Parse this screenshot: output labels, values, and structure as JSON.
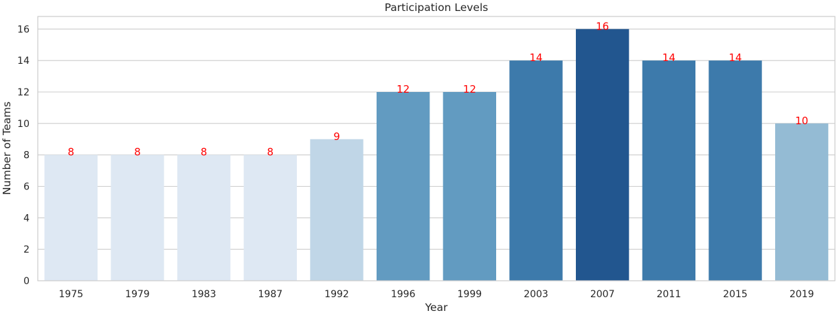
{
  "chart_data": {
    "type": "bar",
    "title": "Participation Levels",
    "xlabel": "Year",
    "ylabel": "Number of Teams",
    "categories": [
      "1975",
      "1979",
      "1983",
      "1987",
      "1992",
      "1996",
      "1999",
      "2003",
      "2007",
      "2011",
      "2015",
      "2019"
    ],
    "values": [
      8,
      8,
      8,
      8,
      9,
      12,
      12,
      14,
      16,
      14,
      14,
      10
    ],
    "bar_colors": [
      "#dee8f3",
      "#dee8f3",
      "#dee8f3",
      "#dee8f3",
      "#c0d6e7",
      "#629bc1",
      "#629bc1",
      "#3d7aab",
      "#22568f",
      "#3d7aab",
      "#3d7aab",
      "#94bbd4"
    ],
    "data_labels": [
      "8",
      "8",
      "8",
      "8",
      "9",
      "12",
      "12",
      "14",
      "16",
      "14",
      "14",
      "10"
    ],
    "data_label_color": "#ff0000",
    "ylim": [
      0,
      16.8
    ],
    "yticks": [
      0,
      2,
      4,
      6,
      8,
      10,
      12,
      14,
      16
    ],
    "grid": "horizontal"
  }
}
